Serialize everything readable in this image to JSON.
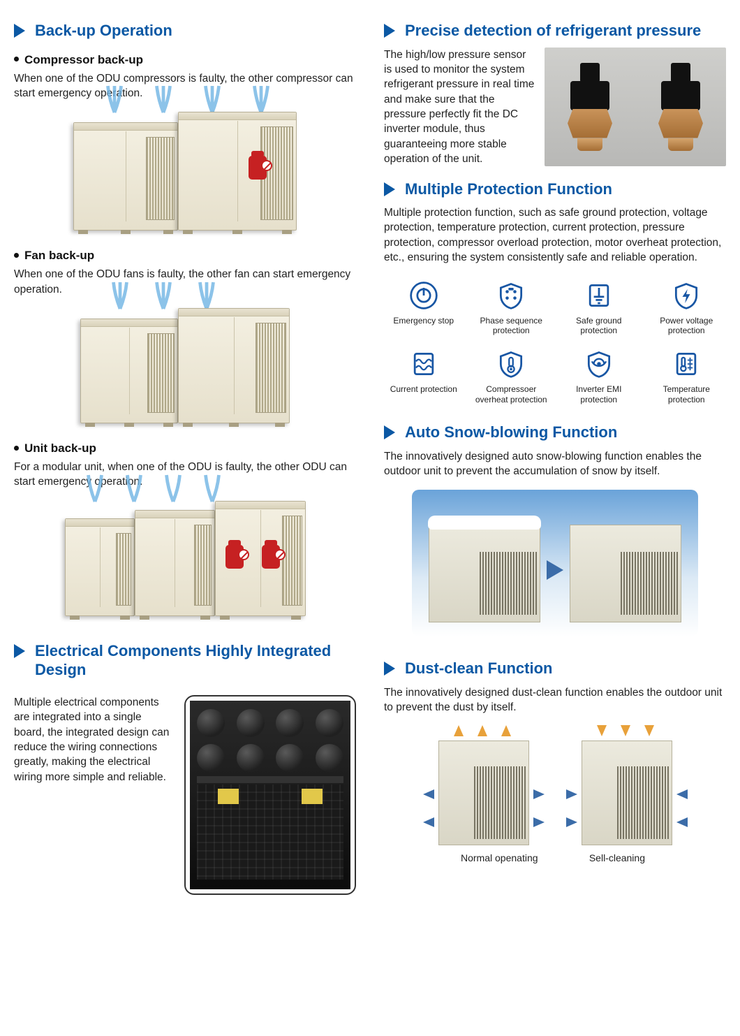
{
  "colors": {
    "title_blue": "#0b58a4",
    "triangle_blue": "#0b58a4",
    "body_text": "#222222",
    "red_marker": "#c62122",
    "icon_blue": "#1856a4",
    "arrow_orange": "#e8a13a",
    "arrow_blue": "#3b6ca8"
  },
  "left": {
    "backup": {
      "title": "Back-up Operation",
      "compressor": {
        "subtitle": "Compressor back-up",
        "text": "When one of the ODU compressors is faulty, the other compressor can start emergency operation."
      },
      "fan": {
        "subtitle": "Fan back-up",
        "text": "When one of the ODU fans is faulty, the other fan can start emergency operation."
      },
      "unit": {
        "subtitle": "Unit back-up",
        "text": "For a modular unit, when one of the ODU is faulty, the other ODU can start emergency operation."
      }
    },
    "electrical": {
      "title": "Electrical Components Highly Integrated Design",
      "text": "Multiple electrical components are integrated into a single board, the integrated design can reduce the wiring connections greatly, making the electrical wiring more simple and reliable."
    }
  },
  "right": {
    "refrigerant": {
      "title": "Precise detection of refrigerant pressure",
      "text": "The high/low pressure sensor is used to monitor the system refrigerant pressure in real time and make sure that the pressure perfectly fit the DC inverter module, thus guaranteeing more stable operation of the unit."
    },
    "protection": {
      "title": "Multiple Protection Function",
      "text": "Multiple protection function, such as safe ground protection, voltage protection, temperature protection, current protection, pressure protection, compressor overload protection, motor overheat protection, etc., ensuring the system consistently safe and reliable operation.",
      "items": [
        {
          "label": "Emergency stop",
          "icon": "power"
        },
        {
          "label": "Phase sequence protection",
          "icon": "phase"
        },
        {
          "label": "Safe ground protection",
          "icon": "ground"
        },
        {
          "label": "Power voltage protection",
          "icon": "voltage"
        },
        {
          "label": "Current protection",
          "icon": "current"
        },
        {
          "label": "Compressoer overheat protection",
          "icon": "overheat"
        },
        {
          "label": "Inverter EMI protection",
          "icon": "emi"
        },
        {
          "label": "Temperature protection",
          "icon": "temperature"
        }
      ]
    },
    "snow": {
      "title": "Auto Snow-blowing Function",
      "text": "The innovatively designed auto snow-blowing function enables the outdoor unit to prevent the accumulation of snow by itself."
    },
    "dust": {
      "title": "Dust-clean Function",
      "text": "The innovatively designed dust-clean function enables the outdoor unit to prevent the dust by itself.",
      "caption_left": "Normal openating",
      "caption_right": "Sell-cleaning"
    }
  }
}
